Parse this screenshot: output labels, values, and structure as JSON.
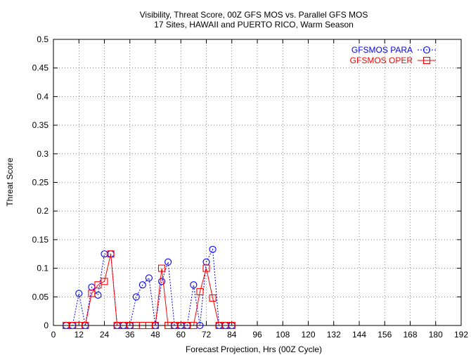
{
  "chart_data": {
    "type": "line",
    "title": "Visibility, Threat Score, 00Z GFS MOS vs. Parallel GFS MOS",
    "subtitle": "17 Sites, HAWAII and PUERTO RICO, Warm Season",
    "xlabel": "Forecast Projection, Hrs (00Z Cycle)",
    "ylabel": "Threat Score",
    "xlim": [
      0,
      192
    ],
    "ylim": [
      0,
      0.5
    ],
    "x_ticks": [
      0,
      12,
      24,
      36,
      48,
      60,
      72,
      84,
      96,
      108,
      120,
      132,
      144,
      156,
      168,
      180,
      192
    ],
    "x_tick_labels": [
      "0",
      "12",
      "24",
      "36",
      "48",
      "60",
      "72",
      "84",
      "96",
      "108",
      "120",
      "132",
      "144",
      "156",
      "168",
      "180",
      "192"
    ],
    "y_ticks": [
      0,
      0.05,
      0.1,
      0.15,
      0.2,
      0.25,
      0.3,
      0.35,
      0.4,
      0.45,
      0.5
    ],
    "y_tick_labels": [
      "0",
      "0.05",
      "0.1",
      "0.15",
      "0.2",
      "0.25",
      "0.3",
      "0.35",
      "0.4",
      "0.45",
      "0.5"
    ],
    "grid": true,
    "legend_position": "top-right",
    "series": [
      {
        "name": "GFSMOS PARA",
        "color": "#0000ff",
        "line_style": "dotted",
        "marker": "circle",
        "x": [
          6,
          9,
          12,
          15,
          18,
          21,
          24,
          27,
          30,
          33,
          36,
          39,
          42,
          45,
          48,
          51,
          54,
          57,
          60,
          63,
          66,
          69,
          72,
          75,
          78,
          81,
          84
        ],
        "y": [
          0,
          0,
          0.056,
          0,
          0.067,
          0.053,
          0.125,
          0.125,
          0,
          0,
          0,
          0.05,
          0.071,
          0.083,
          0,
          0.077,
          0.111,
          0,
          0,
          0,
          0.071,
          0,
          0.111,
          0.133,
          0,
          0,
          0
        ]
      },
      {
        "name": "GFSMOS OPER",
        "color": "#ff0000",
        "line_style": "solid",
        "marker": "square",
        "x": [
          6,
          9,
          12,
          15,
          18,
          21,
          24,
          27,
          30,
          33,
          36,
          39,
          42,
          45,
          48,
          51,
          54,
          57,
          60,
          63,
          66,
          69,
          72,
          75,
          78,
          81,
          84
        ],
        "y": [
          0,
          0,
          0,
          0,
          0.056,
          0.071,
          0.077,
          0.125,
          0,
          0,
          0,
          0,
          0,
          0,
          0,
          0.1,
          0,
          0,
          0,
          0,
          0,
          0.059,
          0.1,
          0.048,
          0,
          0,
          0
        ]
      }
    ]
  }
}
